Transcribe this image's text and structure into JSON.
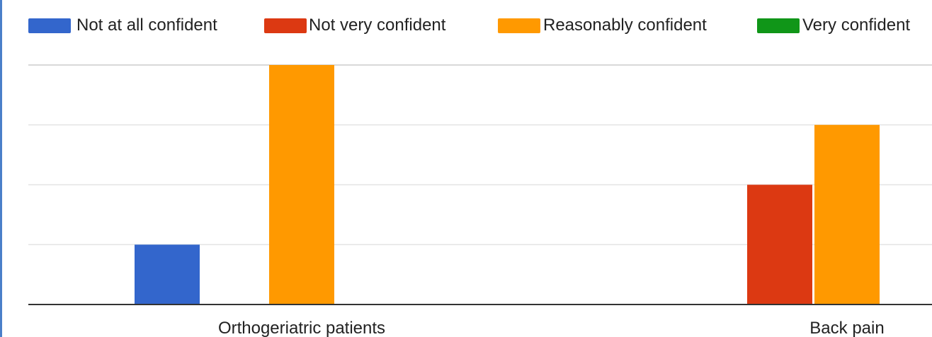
{
  "chart_data": {
    "type": "bar",
    "title": "",
    "xlabel": "",
    "ylabel": "",
    "categories": [
      "Orthogeriatric patients",
      "Back pain"
    ],
    "series": [
      {
        "name": "Not at all confident",
        "color": "#3366cc",
        "values": [
          1,
          0
        ]
      },
      {
        "name": "Not very confident",
        "color": "#dc3912",
        "values": [
          0,
          2
        ]
      },
      {
        "name": "Reasonably confident",
        "color": "#ff9900",
        "values": [
          4,
          3
        ]
      },
      {
        "name": "Very confident",
        "color": "#109618",
        "values": [
          0,
          0
        ]
      }
    ],
    "ylim": [
      0,
      4
    ],
    "grid": true,
    "legend_position": "top"
  }
}
